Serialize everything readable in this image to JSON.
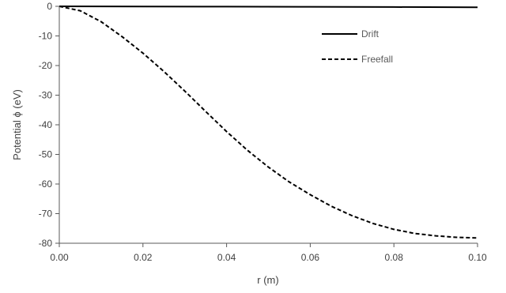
{
  "chart_data": {
    "type": "line",
    "title": "",
    "xlabel": "r (m)",
    "ylabel": "Potential ϕ (eV)",
    "xlim": [
      0,
      0.1
    ],
    "ylim": [
      -80,
      0
    ],
    "x_ticks": [
      "0.00",
      "0.02",
      "0.04",
      "0.06",
      "0.08",
      "0.10"
    ],
    "y_ticks": [
      "0",
      "-10",
      "-20",
      "-30",
      "-40",
      "-50",
      "-60",
      "-70",
      "-80"
    ],
    "grid": false,
    "legend_position": "top-right",
    "series": [
      {
        "name": "Drift",
        "style": "solid",
        "color": "#000000",
        "x": [
          0,
          0.02,
          0.04,
          0.06,
          0.08,
          0.1
        ],
        "y": [
          0,
          -0.05,
          -0.1,
          -0.15,
          -0.25,
          -0.35
        ]
      },
      {
        "name": "Freefall",
        "style": "dashed",
        "color": "#000000",
        "x": [
          0,
          0.005,
          0.01,
          0.015,
          0.02,
          0.025,
          0.03,
          0.035,
          0.04,
          0.045,
          0.05,
          0.055,
          0.06,
          0.065,
          0.07,
          0.075,
          0.08,
          0.085,
          0.09,
          0.095,
          0.1
        ],
        "y": [
          0,
          -1.5,
          -5.2,
          -10.2,
          -15.8,
          -22.0,
          -28.6,
          -35.5,
          -42.3,
          -48.6,
          -54.3,
          -59.3,
          -63.6,
          -67.5,
          -70.7,
          -73.3,
          -75.3,
          -76.7,
          -77.5,
          -78.0,
          -78.2
        ]
      }
    ]
  }
}
